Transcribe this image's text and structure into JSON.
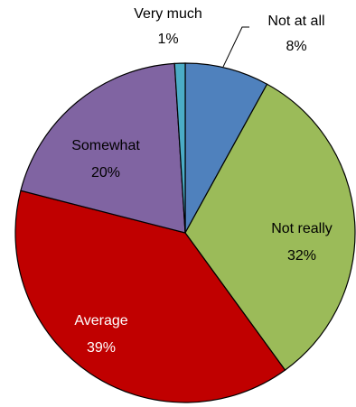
{
  "chart_data": {
    "type": "pie",
    "title": "",
    "slices": [
      {
        "label": "Not at all",
        "value": 8,
        "value_label": "8%",
        "color": "#4f81bd"
      },
      {
        "label": "Not really",
        "value": 32,
        "value_label": "32%",
        "color": "#9bbb59"
      },
      {
        "label": "Average",
        "value": 39,
        "value_label": "39%",
        "color": "#c00000"
      },
      {
        "label": "Somewhat",
        "value": 20,
        "value_label": "20%",
        "color": "#8064a2"
      },
      {
        "label": "Very much",
        "value": 1,
        "value_label": "1%",
        "color": "#4bacc6"
      }
    ],
    "start_angle_deg": 0,
    "direction": "clockwise",
    "legend": "none",
    "label_colors": {
      "Not at all": "#000000",
      "Not really": "#000000",
      "Average": "#ffffff",
      "Somewhat": "#000000",
      "Very much": "#000000"
    }
  }
}
